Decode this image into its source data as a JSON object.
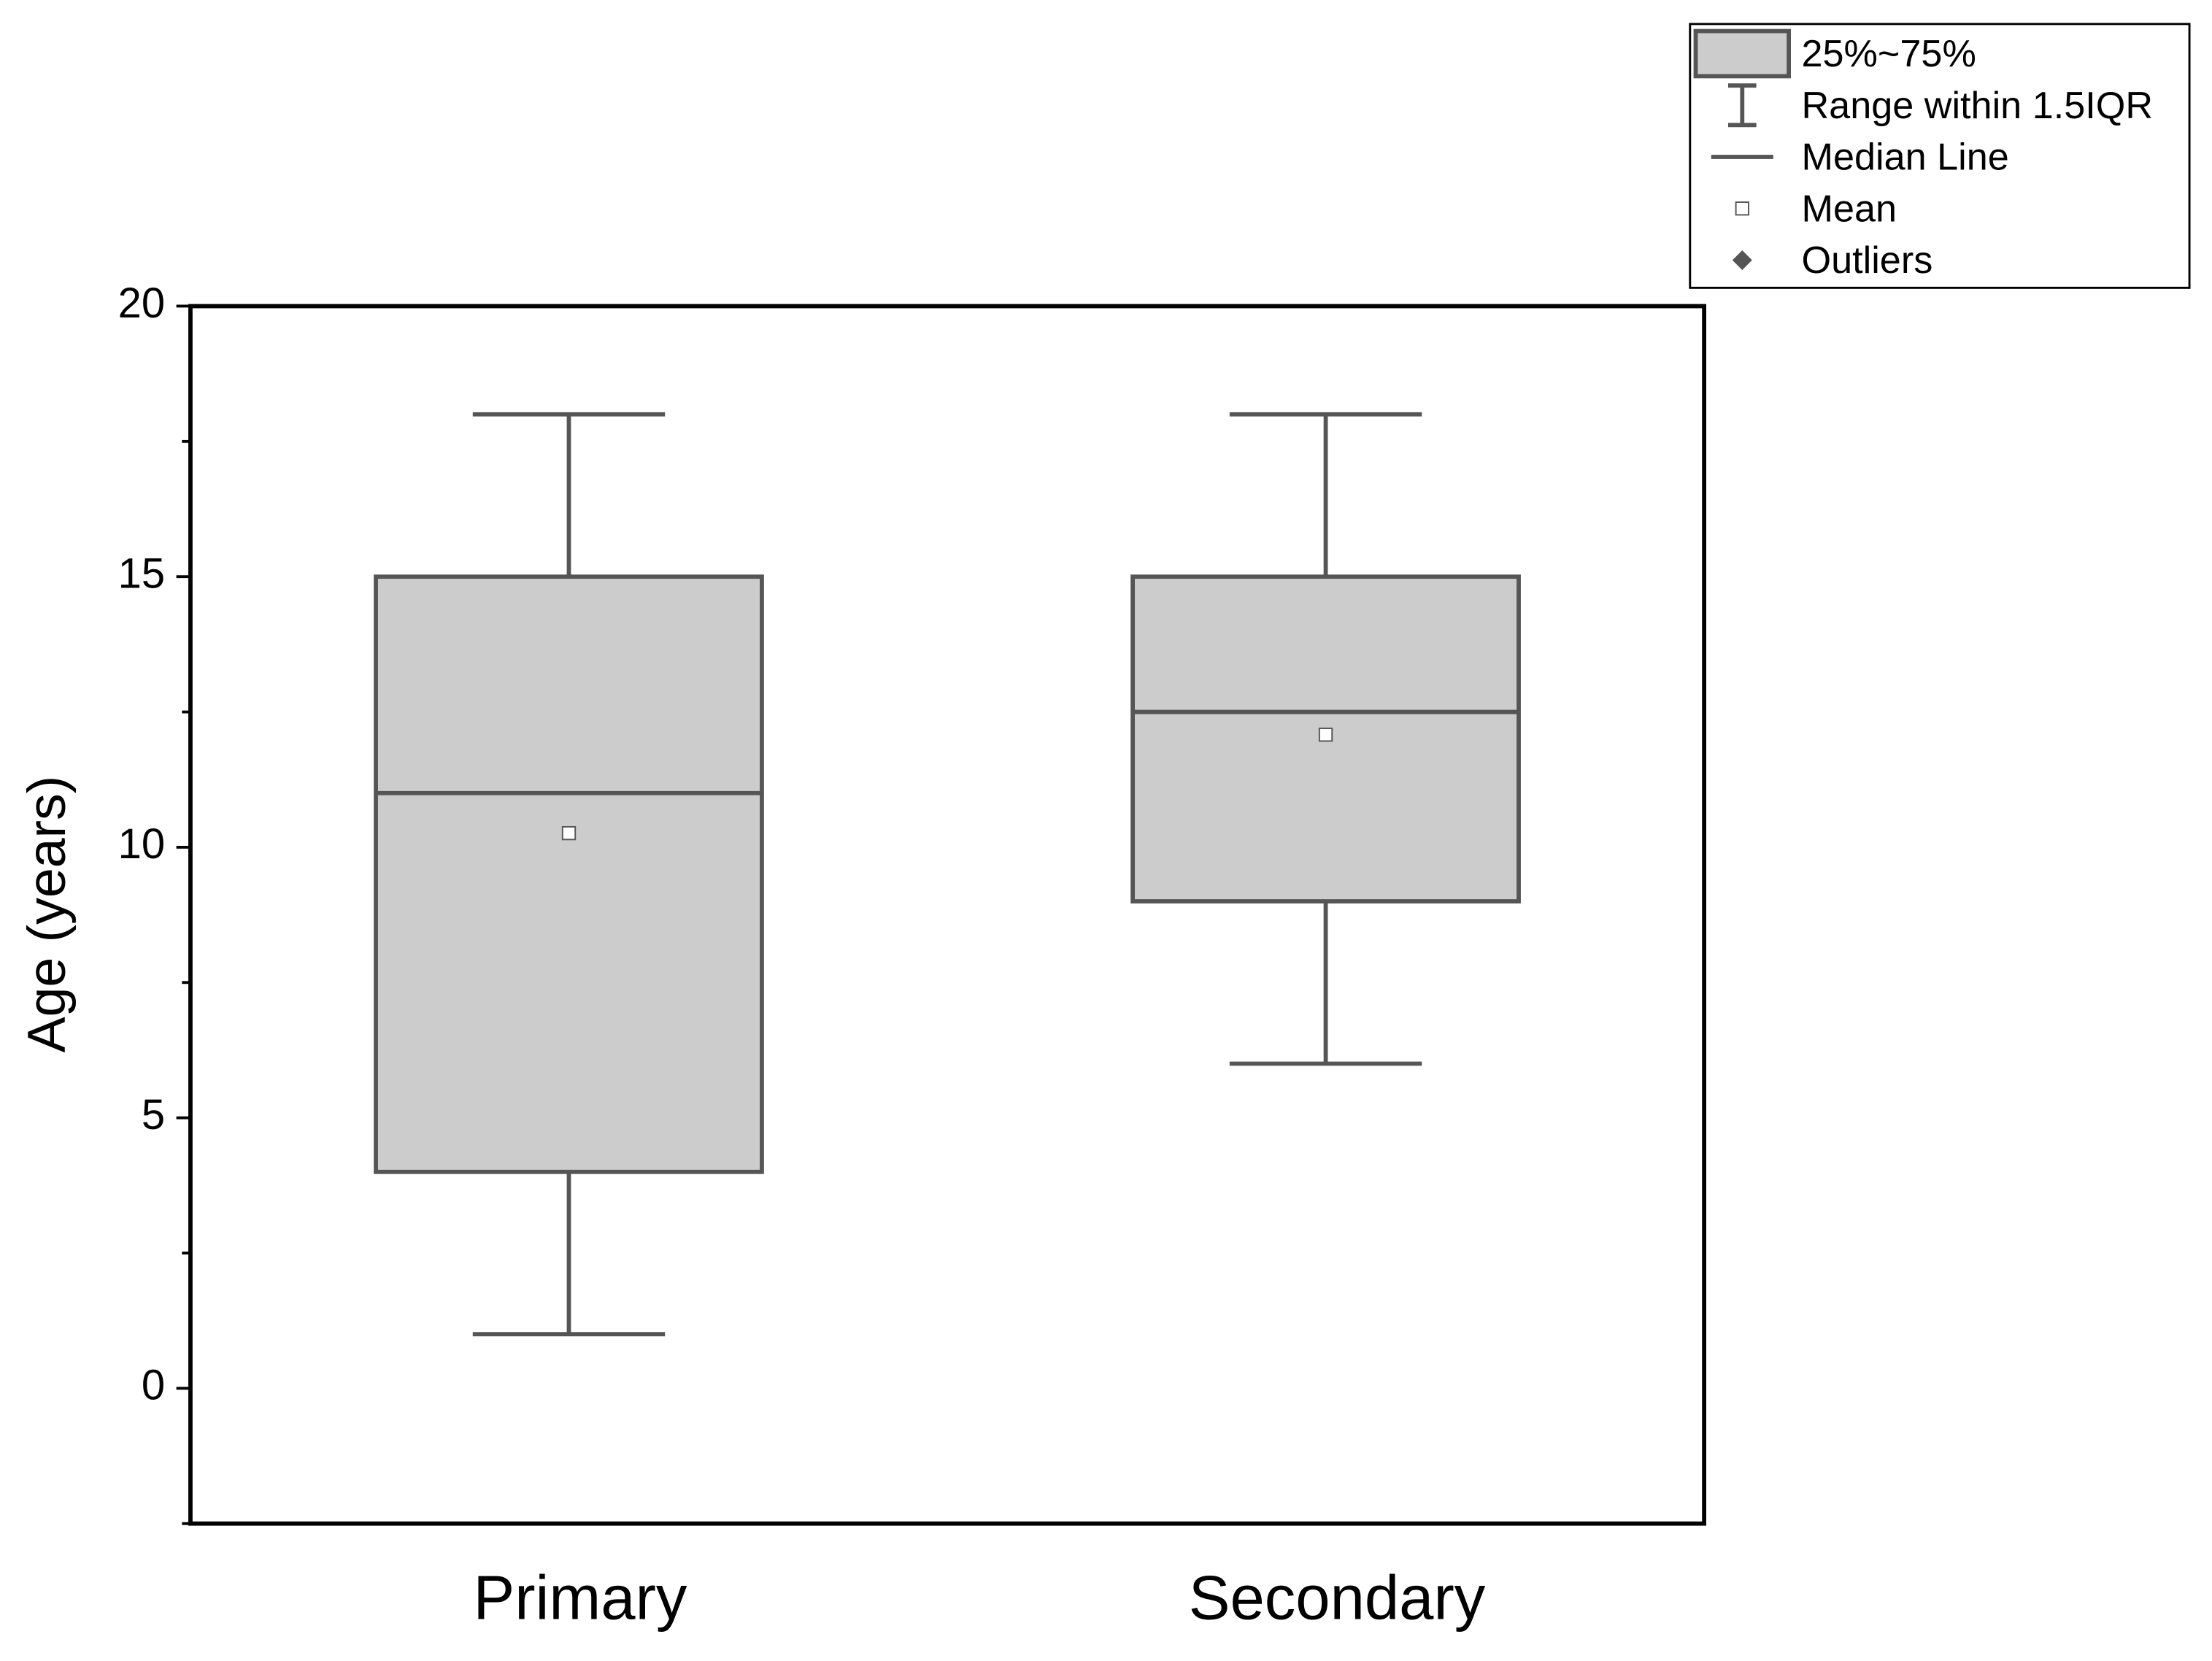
{
  "chart_data": {
    "type": "box",
    "y_label": "Age (years)",
    "categories": [
      "Primary",
      "Secondary"
    ],
    "whisker_low": [
      1,
      6
    ],
    "q1": [
      4,
      9
    ],
    "median": [
      11,
      12.5
    ],
    "q3": [
      15,
      15
    ],
    "whisker_high": [
      18,
      18
    ],
    "mean": [
      10.26,
      12.08
    ],
    "box_color": "#cccccc",
    "line_color": "#555555",
    "ylim": [
      -2.5,
      20
    ],
    "yticks": [
      0,
      5,
      10,
      15,
      20
    ],
    "yminor_ticks": [
      -2.5,
      2.5,
      7.5,
      12.5,
      17.5
    ],
    "legend": [
      "25%~75%",
      "Range within 1.5IQR",
      "Median Line",
      "Mean",
      "Outliers"
    ],
    "legend_position": "top-right"
  }
}
